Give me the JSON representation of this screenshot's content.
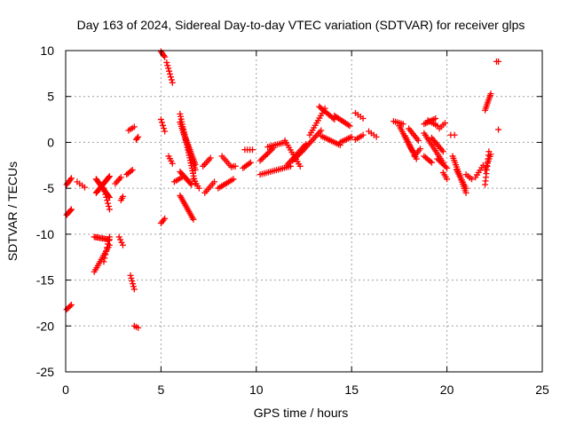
{
  "chart_data": {
    "type": "scatter",
    "title": "Day 163 of 2024, Sidereal Day-to-day VTEC variation (SDTVAR) for receiver glps",
    "xlabel": "GPS time / hours",
    "ylabel": "SDTVAR / TECUs",
    "xlim": [
      0,
      25
    ],
    "ylim": [
      -25,
      10
    ],
    "xticks": [
      0,
      5,
      10,
      15,
      20,
      25
    ],
    "yticks": [
      -25,
      -20,
      -15,
      -10,
      -5,
      0,
      5,
      10
    ],
    "grid": true,
    "marker": "+",
    "color": "#ff0000",
    "segments": [
      {
        "x0": 0.05,
        "y0": -4.6,
        "x1": 0.3,
        "y1": -3.9,
        "n": 6
      },
      {
        "x0": 0.05,
        "y0": -7.9,
        "x1": 0.3,
        "y1": -7.3,
        "n": 6
      },
      {
        "x0": 0.05,
        "y0": -18.2,
        "x1": 0.3,
        "y1": -17.7,
        "n": 5
      },
      {
        "x0": 0.6,
        "y0": -4.3,
        "x1": 1.0,
        "y1": -4.9,
        "n": 4
      },
      {
        "x0": 1.6,
        "y0": -5.5,
        "x1": 2.3,
        "y1": -3.7,
        "n": 18
      },
      {
        "x0": 1.6,
        "y0": -4.0,
        "x1": 2.3,
        "y1": -6.0,
        "n": 18
      },
      {
        "x0": 2.0,
        "y0": -5.0,
        "x1": 2.3,
        "y1": -7.3,
        "n": 8
      },
      {
        "x0": 1.5,
        "y0": -10.3,
        "x1": 2.3,
        "y1": -10.6,
        "n": 12
      },
      {
        "x0": 1.5,
        "y0": -14.1,
        "x1": 2.3,
        "y1": -11.2,
        "n": 14
      },
      {
        "x0": 2.0,
        "y0": -13.0,
        "x1": 2.3,
        "y1": -10.3,
        "n": 8
      },
      {
        "x0": 2.6,
        "y0": -4.5,
        "x1": 2.9,
        "y1": -3.8,
        "n": 5
      },
      {
        "x0": 2.9,
        "y0": -6.3,
        "x1": 3.0,
        "y1": -5.9,
        "n": 3
      },
      {
        "x0": 2.8,
        "y0": -10.3,
        "x1": 3.0,
        "y1": -11.2,
        "n": 4
      },
      {
        "x0": 3.2,
        "y0": -3.5,
        "x1": 3.5,
        "y1": -3.0,
        "n": 5
      },
      {
        "x0": 3.3,
        "y0": 1.3,
        "x1": 3.6,
        "y1": 1.7,
        "n": 4
      },
      {
        "x0": 3.4,
        "y0": -14.5,
        "x1": 3.6,
        "y1": -16.0,
        "n": 6
      },
      {
        "x0": 3.6,
        "y0": -20.0,
        "x1": 3.8,
        "y1": -20.2,
        "n": 3
      },
      {
        "x0": 3.7,
        "y0": 0.3,
        "x1": 3.8,
        "y1": 0.6,
        "n": 3
      },
      {
        "x0": 5.0,
        "y0": 9.9,
        "x1": 5.2,
        "y1": 9.3,
        "n": 5
      },
      {
        "x0": 5.0,
        "y0": 2.5,
        "x1": 5.2,
        "y1": 1.2,
        "n": 5
      },
      {
        "x0": 5.0,
        "y0": -8.8,
        "x1": 5.2,
        "y1": -8.3,
        "n": 4
      },
      {
        "x0": 5.3,
        "y0": 8.7,
        "x1": 5.6,
        "y1": 6.5,
        "n": 8
      },
      {
        "x0": 5.4,
        "y0": -1.5,
        "x1": 5.6,
        "y1": -2.3,
        "n": 4
      },
      {
        "x0": 5.7,
        "y0": -4.3,
        "x1": 6.1,
        "y1": -3.8,
        "n": 5
      },
      {
        "x0": 6.0,
        "y0": 3.1,
        "x1": 6.8,
        "y1": -4.5,
        "n": 28
      },
      {
        "x0": 6.0,
        "y0": 2.2,
        "x1": 6.8,
        "y1": -3.0,
        "n": 24
      },
      {
        "x0": 6.2,
        "y0": 1.0,
        "x1": 6.8,
        "y1": -2.4,
        "n": 18
      },
      {
        "x0": 6.0,
        "y0": -3.2,
        "x1": 6.6,
        "y1": -4.6,
        "n": 12
      },
      {
        "x0": 6.0,
        "y0": -5.8,
        "x1": 6.7,
        "y1": -8.4,
        "n": 16
      },
      {
        "x0": 6.7,
        "y0": -4.0,
        "x1": 7.0,
        "y1": -5.0,
        "n": 5
      },
      {
        "x0": 7.2,
        "y0": -2.6,
        "x1": 7.6,
        "y1": -1.7,
        "n": 6
      },
      {
        "x0": 7.3,
        "y0": -5.5,
        "x1": 7.8,
        "y1": -4.3,
        "n": 7
      },
      {
        "x0": 8.0,
        "y0": -5.0,
        "x1": 8.8,
        "y1": -4.0,
        "n": 10
      },
      {
        "x0": 8.2,
        "y0": -1.5,
        "x1": 8.7,
        "y1": -2.7,
        "n": 7
      },
      {
        "x0": 8.8,
        "y0": -2.6,
        "x1": 8.9,
        "y1": -2.6,
        "n": 2
      },
      {
        "x0": 9.3,
        "y0": -2.8,
        "x1": 9.7,
        "y1": -2.2,
        "n": 6
      },
      {
        "x0": 9.4,
        "y0": -0.8,
        "x1": 9.8,
        "y1": -0.8,
        "n": 4
      },
      {
        "x0": 10.2,
        "y0": -2.0,
        "x1": 10.9,
        "y1": -0.6,
        "n": 10
      },
      {
        "x0": 10.2,
        "y0": -3.5,
        "x1": 11.8,
        "y1": -2.6,
        "n": 16
      },
      {
        "x0": 10.6,
        "y0": -0.5,
        "x1": 11.5,
        "y1": 0.0,
        "n": 10
      },
      {
        "x0": 11.5,
        "y0": 0.2,
        "x1": 12.3,
        "y1": -2.6,
        "n": 12
      },
      {
        "x0": 11.6,
        "y0": -2.5,
        "x1": 12.6,
        "y1": -0.2,
        "n": 14
      },
      {
        "x0": 11.9,
        "y0": -2.0,
        "x1": 12.4,
        "y1": -1.0,
        "n": 8
      },
      {
        "x0": 12.4,
        "y0": -1.0,
        "x1": 13.4,
        "y1": 1.3,
        "n": 14
      },
      {
        "x0": 12.8,
        "y0": 0.8,
        "x1": 13.6,
        "y1": 3.7,
        "n": 12
      },
      {
        "x0": 13.3,
        "y0": 3.9,
        "x1": 14.1,
        "y1": 2.5,
        "n": 12
      },
      {
        "x0": 13.4,
        "y0": 0.7,
        "x1": 14.4,
        "y1": -0.3,
        "n": 12
      },
      {
        "x0": 14.1,
        "y0": 2.9,
        "x1": 14.9,
        "y1": 1.8,
        "n": 12
      },
      {
        "x0": 14.4,
        "y0": 0.0,
        "x1": 15.0,
        "y1": 0.6,
        "n": 8
      },
      {
        "x0": 15.2,
        "y0": 0.3,
        "x1": 15.6,
        "y1": 0.8,
        "n": 5
      },
      {
        "x0": 15.2,
        "y0": 3.2,
        "x1": 15.6,
        "y1": 2.6,
        "n": 4
      },
      {
        "x0": 15.9,
        "y0": 1.2,
        "x1": 16.3,
        "y1": 0.6,
        "n": 4
      },
      {
        "x0": 17.2,
        "y0": 2.3,
        "x1": 17.7,
        "y1": 2.0,
        "n": 6
      },
      {
        "x0": 17.5,
        "y0": 1.8,
        "x1": 18.2,
        "y1": -1.0,
        "n": 14
      },
      {
        "x0": 17.8,
        "y0": 0.7,
        "x1": 18.4,
        "y1": -1.8,
        "n": 12
      },
      {
        "x0": 18.0,
        "y0": 1.5,
        "x1": 18.5,
        "y1": 0.2,
        "n": 8
      },
      {
        "x0": 18.3,
        "y0": -1.5,
        "x1": 18.6,
        "y1": -0.7,
        "n": 5
      },
      {
        "x0": 18.8,
        "y0": 2.0,
        "x1": 19.4,
        "y1": 2.6,
        "n": 8
      },
      {
        "x0": 19.0,
        "y0": 2.4,
        "x1": 19.5,
        "y1": 1.8,
        "n": 6
      },
      {
        "x0": 18.8,
        "y0": 1.0,
        "x1": 19.8,
        "y1": -2.2,
        "n": 16
      },
      {
        "x0": 18.8,
        "y0": -1.5,
        "x1": 19.2,
        "y1": -2.2,
        "n": 6
      },
      {
        "x0": 19.2,
        "y0": 0.5,
        "x1": 19.8,
        "y1": -1.0,
        "n": 10
      },
      {
        "x0": 19.5,
        "y0": -1.8,
        "x1": 20.0,
        "y1": -2.8,
        "n": 8
      },
      {
        "x0": 19.6,
        "y0": 1.5,
        "x1": 19.9,
        "y1": 2.1,
        "n": 4
      },
      {
        "x0": 19.8,
        "y0": -3.3,
        "x1": 20.0,
        "y1": -4.0,
        "n": 4
      },
      {
        "x0": 20.2,
        "y0": 0.8,
        "x1": 20.4,
        "y1": 0.8,
        "n": 2
      },
      {
        "x0": 20.3,
        "y0": -1.5,
        "x1": 21.0,
        "y1": -5.5,
        "n": 18
      },
      {
        "x0": 20.5,
        "y0": -3.0,
        "x1": 21.0,
        "y1": -5.0,
        "n": 10
      },
      {
        "x0": 21.0,
        "y0": -3.5,
        "x1": 21.3,
        "y1": -4.0,
        "n": 4
      },
      {
        "x0": 21.5,
        "y0": -3.8,
        "x1": 21.9,
        "y1": -2.5,
        "n": 6
      },
      {
        "x0": 22.0,
        "y0": -4.6,
        "x1": 22.2,
        "y1": -1.0,
        "n": 10
      },
      {
        "x0": 22.0,
        "y0": -3.0,
        "x1": 22.3,
        "y1": -1.3,
        "n": 8
      },
      {
        "x0": 22.0,
        "y0": 3.5,
        "x1": 22.3,
        "y1": 5.3,
        "n": 10
      },
      {
        "x0": 22.6,
        "y0": 8.8,
        "x1": 22.7,
        "y1": 8.8,
        "n": 2
      },
      {
        "x0": 22.7,
        "y0": 1.4,
        "x1": 22.7,
        "y1": 1.4,
        "n": 1
      }
    ]
  }
}
